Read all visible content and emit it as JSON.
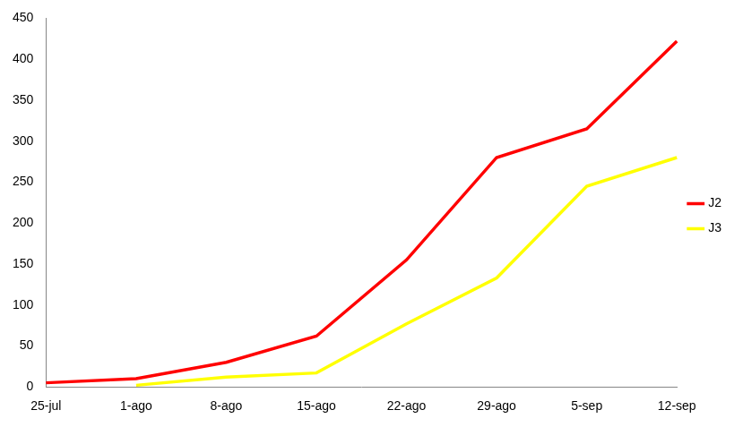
{
  "chart_data": {
    "type": "line",
    "categories": [
      "25-jul",
      "1-ago",
      "8-ago",
      "15-ago",
      "22-ago",
      "29-ago",
      "5-sep",
      "12-sep"
    ],
    "series": [
      {
        "name": "J2",
        "color": "#ff0000",
        "values": [
          5,
          10,
          30,
          62,
          155,
          280,
          315,
          422
        ]
      },
      {
        "name": "J3",
        "color": "#ffff00",
        "values": [
          null,
          2,
          12,
          17,
          77,
          133,
          245,
          280
        ]
      }
    ],
    "ylim": [
      0,
      450
    ],
    "yticks": [
      0,
      50,
      100,
      150,
      200,
      250,
      300,
      350,
      400,
      450
    ],
    "grid": false,
    "legend": "right"
  }
}
